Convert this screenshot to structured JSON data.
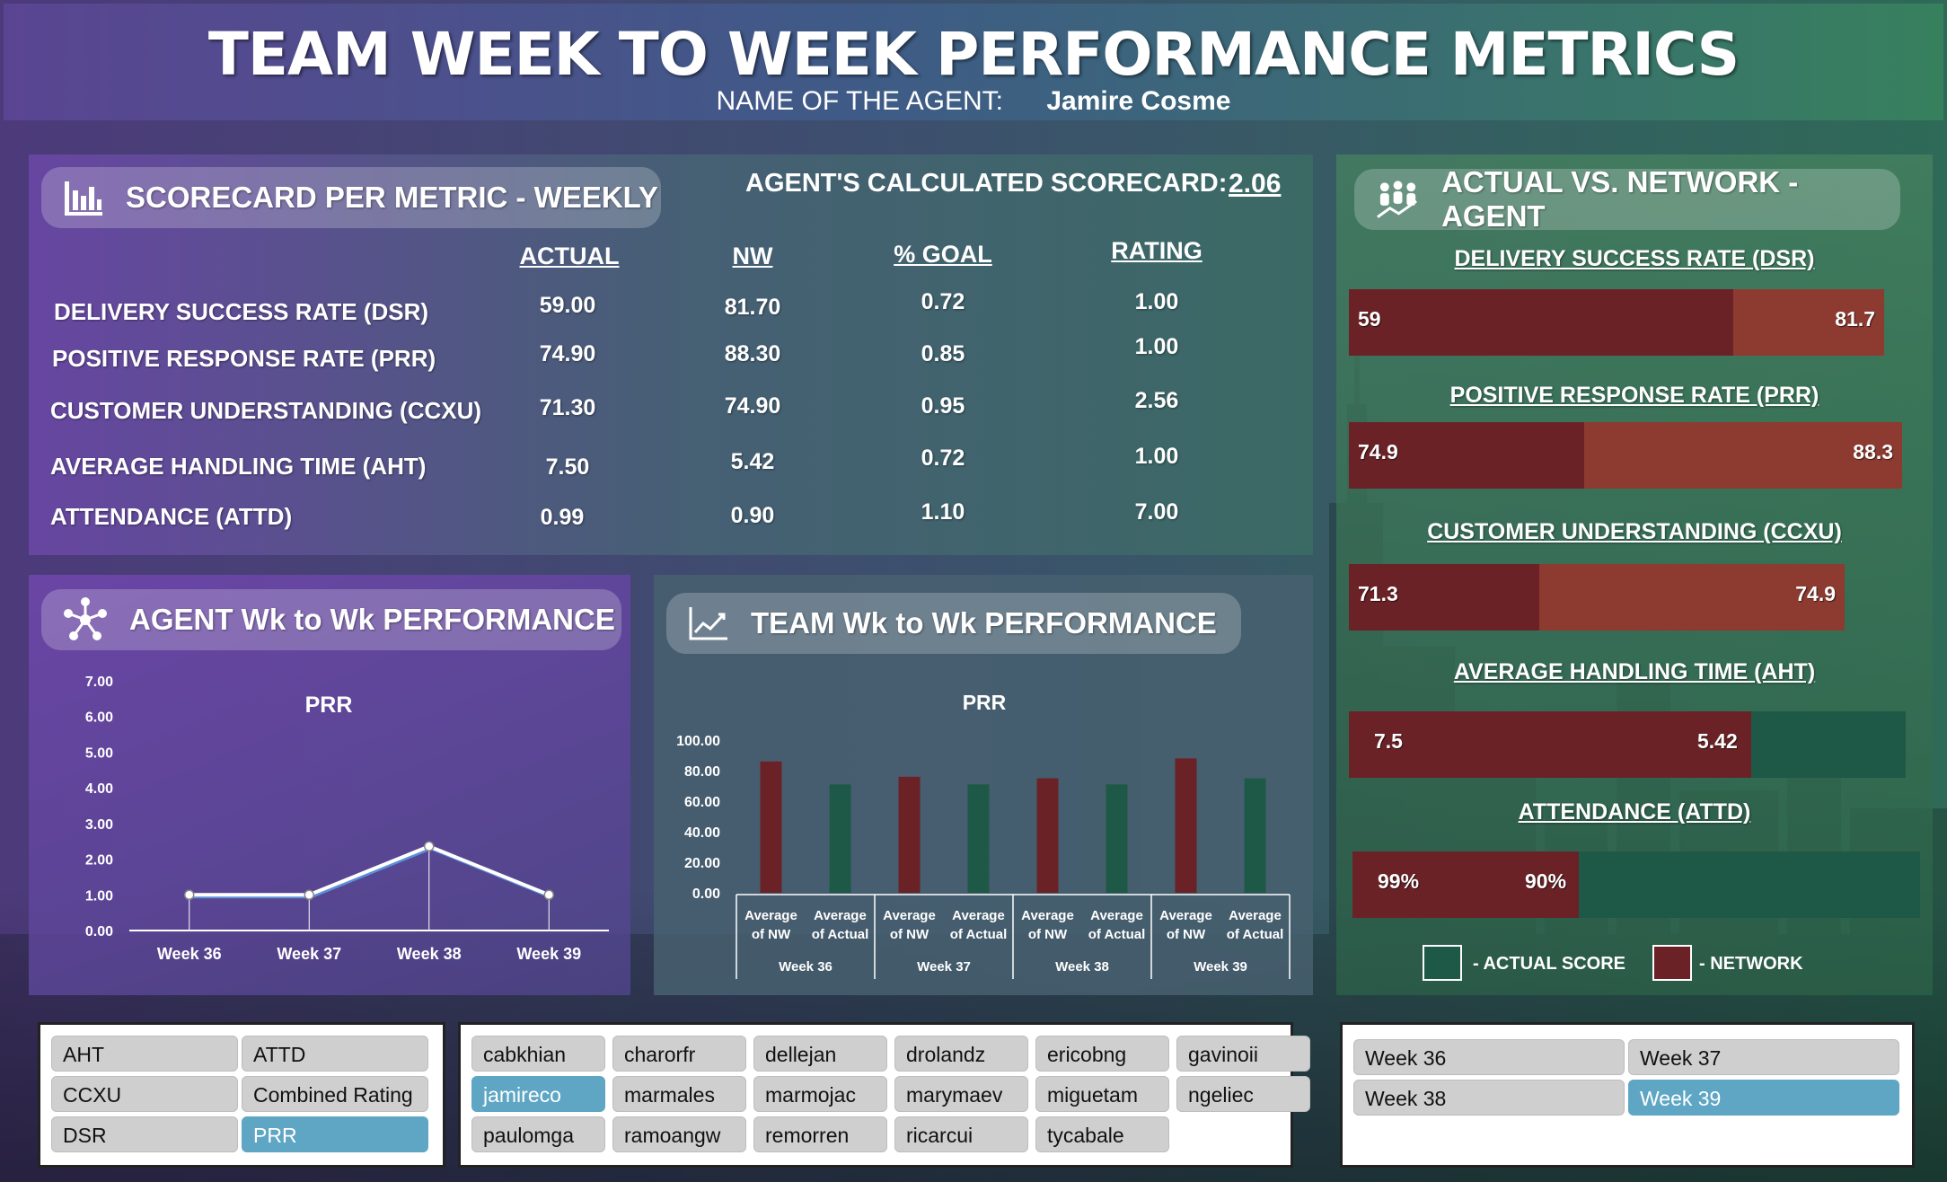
{
  "title": "TEAM WEEK TO WEEK PERFORMANCE METRICS",
  "agent": {
    "label": "NAME OF THE AGENT:",
    "name": "Jamire Cosme"
  },
  "scorecard": {
    "title": "SCORECARD PER METRIC - WEEKLY",
    "calc_label": "AGENT'S CALCULATED SCORECARD:",
    "calc_value": "2.06",
    "headers": [
      "ACTUAL",
      "NW",
      "% GOAL",
      "RATING"
    ],
    "rows": [
      {
        "label": "DELIVERY SUCCESS RATE (DSR)",
        "actual": "59.00",
        "nw": "81.70",
        "goal": "0.72",
        "rating": "1.00"
      },
      {
        "label": "POSITIVE RESPONSE RATE (PRR)",
        "actual": "74.90",
        "nw": "88.30",
        "goal": "0.85",
        "rating": "1.00"
      },
      {
        "label": "CUSTOMER UNDERSTANDING (CCXU)",
        "actual": "71.30",
        "nw": "74.90",
        "goal": "0.95",
        "rating": "2.56"
      },
      {
        "label": "AVERAGE HANDLING TIME (AHT)",
        "actual": "7.50",
        "nw": "5.42",
        "goal": "0.72",
        "rating": "1.00"
      },
      {
        "label": "ATTENDANCE (ATTD)",
        "actual": "0.99",
        "nw": "0.90",
        "goal": "1.10",
        "rating": "7.00"
      }
    ]
  },
  "agent_perf": {
    "title": "AGENT Wk to Wk PERFORMANCE",
    "icon": "network-icon"
  },
  "team_perf": {
    "title": "TEAM  Wk to Wk PERFORMANCE",
    "icon": "line-chart-icon"
  },
  "actual_vs": {
    "title": "ACTUAL VS. NETWORK - AGENT",
    "icon": "people-chart-icon",
    "metrics": [
      {
        "label": "DELIVERY SUCCESS RATE (DSR)",
        "actual_label": "59",
        "nw_label": "81.7",
        "actual": 59,
        "nw": 81.7
      },
      {
        "label": "POSITIVE RESPONSE RATE (PRR)",
        "actual_label": "74.9",
        "nw_label": "88.3",
        "actual": 74.9,
        "nw": 88.3
      },
      {
        "label": "CUSTOMER UNDERSTANDING (CCXU)",
        "actual_label": "71.3",
        "nw_label": "74.9",
        "actual": 71.3,
        "nw": 74.9
      },
      {
        "label": "AVERAGE HANDLING TIME (AHT)",
        "actual_label": "7.5",
        "nw_label": "5.42",
        "actual": 7.5,
        "nw": 5.42
      },
      {
        "label": "ATTENDANCE (ATTD)",
        "actual_label": "99%",
        "nw_label": "90%",
        "actual": 0.99,
        "nw": 0.9
      }
    ],
    "legend_actual": "-  ACTUAL SCORE",
    "legend_network": "- NETWORK"
  },
  "colors": {
    "network": "#6b2226",
    "actual": "#1e5947",
    "selected": "#5fa6c4",
    "button": "#cfcfcf"
  },
  "slicers": {
    "metrics": [
      {
        "label": "AHT",
        "selected": false
      },
      {
        "label": "ATTD",
        "selected": false
      },
      {
        "label": "CCXU",
        "selected": false
      },
      {
        "label": "Combined Rating",
        "selected": false
      },
      {
        "label": "DSR",
        "selected": false
      },
      {
        "label": "PRR",
        "selected": true
      }
    ],
    "agents": [
      {
        "label": "cabkhian",
        "selected": false
      },
      {
        "label": "charorfr",
        "selected": false
      },
      {
        "label": "dellejan",
        "selected": false
      },
      {
        "label": "drolandz",
        "selected": false
      },
      {
        "label": "ericobng",
        "selected": false
      },
      {
        "label": "gavinoii",
        "selected": false
      },
      {
        "label": "jamireco",
        "selected": true
      },
      {
        "label": "marmales",
        "selected": false
      },
      {
        "label": "marmojac",
        "selected": false
      },
      {
        "label": "marymaev",
        "selected": false
      },
      {
        "label": "miguetam",
        "selected": false
      },
      {
        "label": "ngeliec",
        "selected": false
      },
      {
        "label": "paulomga",
        "selected": false
      },
      {
        "label": "ramoangw",
        "selected": false
      },
      {
        "label": "remorren",
        "selected": false
      },
      {
        "label": "ricarcui",
        "selected": false
      },
      {
        "label": "tycabale",
        "selected": false
      }
    ],
    "weeks": [
      {
        "label": "Week 36",
        "selected": false
      },
      {
        "label": "Week 37",
        "selected": false
      },
      {
        "label": "Week 38",
        "selected": false
      },
      {
        "label": "Week 39",
        "selected": true
      }
    ]
  },
  "chart_data": [
    {
      "type": "line",
      "title": "PRR",
      "categories": [
        "Week 36",
        "Week 37",
        "Week 38",
        "Week 39"
      ],
      "series": [
        {
          "values": [
            1.0,
            1.0,
            2.36,
            1.0
          ]
        }
      ],
      "ylim": [
        0,
        7
      ],
      "yticks": [
        "0.00",
        "1.00",
        "2.00",
        "3.00",
        "4.00",
        "5.00",
        "6.00",
        "7.00"
      ],
      "legend": "none"
    },
    {
      "type": "bar",
      "title": "PRR",
      "groups": [
        "Week 36",
        "Week 37",
        "Week 38",
        "Week 39"
      ],
      "sub_categories": [
        "Average of NW",
        "Average of Actual"
      ],
      "series": [
        {
          "name": "Average of NW",
          "values": [
            86,
            76,
            75,
            88
          ]
        },
        {
          "name": "Average of Actual",
          "values": [
            71,
            71,
            71,
            75
          ]
        }
      ],
      "ylim": [
        0,
        100
      ],
      "yticks": [
        "0.00",
        "20.00",
        "40.00",
        "60.00",
        "80.00",
        "100.00"
      ],
      "legend": "none"
    },
    {
      "type": "bar",
      "title": "ACTUAL VS. NETWORK - AGENT",
      "orientation": "horizontal",
      "categories": [
        "DELIVERY SUCCESS RATE (DSR)",
        "POSITIVE RESPONSE RATE (PRR)",
        "CUSTOMER UNDERSTANDING (CCXU)",
        "AVERAGE HANDLING TIME (AHT)",
        "ATTENDANCE (ATTD)"
      ],
      "series": [
        {
          "name": "ACTUAL SCORE",
          "values": [
            59,
            74.9,
            71.3,
            7.5,
            0.99
          ]
        },
        {
          "name": "NETWORK",
          "values": [
            81.7,
            88.3,
            74.9,
            5.42,
            0.9
          ]
        }
      ],
      "legend": "bottom"
    }
  ]
}
